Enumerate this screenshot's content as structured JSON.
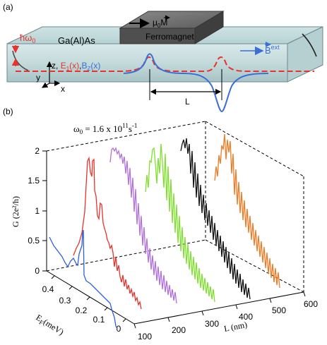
{
  "panel_a": {
    "label": "(a)",
    "hbar_omega": "ħω",
    "hbar_omega_sub": "0",
    "material": "Ga(Al)As",
    "mu0M": "μ",
    "mu0M_sub": "0",
    "mu0M_vec": "M",
    "ferromagnet": "Ferromagnet",
    "bext": "B",
    "bext_sup": "ext",
    "axis_z_label": "z,",
    "e1_label": "E",
    "e1_sub": "1",
    "e1_arg": "(x)",
    "comma": ",",
    "bz_label": "B",
    "bz_sub": "Z",
    "bz_arg": "(x)",
    "axis_y": "y",
    "axis_x": "x",
    "dim_L": "L",
    "colors": {
      "e1": "#e8322a",
      "bz": "#3a6fd8",
      "bext_arrow": "#3a6fd8"
    }
  },
  "panel_b": {
    "label": "(b)",
    "omega_text": "ω",
    "omega_sub": "0",
    "omega_value": " = 1.6 x 10",
    "omega_exp": "11",
    "omega_unit": "s",
    "omega_unit_exp": "-1",
    "y_axis_label": "G (2e²/h)",
    "y_ticks": [
      "0",
      "0.5",
      "1",
      "1.5",
      "2"
    ],
    "ef_axis_label": "E",
    "ef_axis_sub": "F",
    "ef_axis_unit": "(meV)",
    "ef_ticks": [
      "0",
      "0.1",
      "0.2",
      "0.3",
      "0.4"
    ],
    "l_axis_label": "L (nm)",
    "l_ticks": [
      "100",
      "200",
      "300",
      "400",
      "500",
      "600"
    ],
    "trace_colors": [
      "#2b62d9",
      "#e8322a",
      "#b070e0",
      "#7ee02c",
      "#111111",
      "#f07a24"
    ]
  }
}
